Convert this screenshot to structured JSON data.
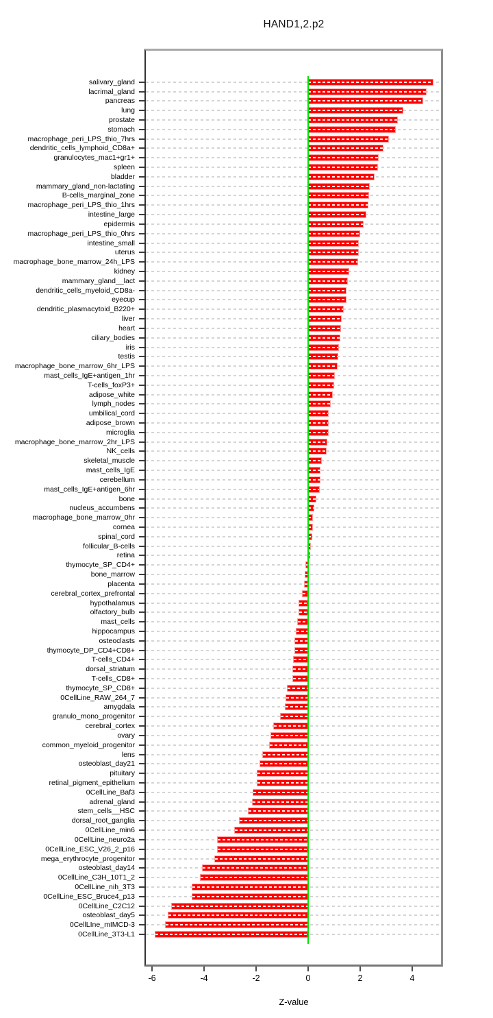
{
  "chart_data": {
    "type": "bar",
    "orientation": "horizontal",
    "title": "HAND1,2.p2",
    "xlabel": "Z-value",
    "xlim": [
      -6.26,
      5.18
    ],
    "xticks": [
      -6,
      -4,
      -2,
      0,
      2,
      4
    ],
    "grid": "dashed light-gray horizontal line per category",
    "zero_line": true,
    "legend": "none",
    "categories": [
      "salivary_gland",
      "lacrimal_gland",
      "pancreas",
      "lung",
      "prostate",
      "stomach",
      "macrophage_peri_LPS_thio_7hrs",
      "dendritic_cells_lymphoid_CD8a+",
      "granulocytes_mac1+gr1+",
      "spleen",
      "bladder",
      "mammary_gland_non-lactating",
      "B-cells_marginal_zone",
      "macrophage_peri_LPS_thio_1hrs",
      "intestine_large",
      "epidermis",
      "macrophage_peri_LPS_thio_0hrs",
      "intestine_small",
      "uterus",
      "macrophage_bone_marrow_24h_LPS",
      "kidney",
      "mammary_gland__lact",
      "dendritic_cells_myeloid_CD8a-",
      "eyecup",
      "dendritic_plasmacytoid_B220+",
      "liver",
      "heart",
      "ciliary_bodies",
      "iris",
      "testis",
      "macrophage_bone_marrow_6hr_LPS",
      "mast_cells_IgE+antigen_1hr",
      "T-cells_foxP3+",
      "adipose_white",
      "lymph_nodes",
      "umbilical_cord",
      "adipose_brown",
      "microglia",
      "macrophage_bone_marrow_2hr_LPS",
      "NK_cells",
      "skeletal_muscle",
      "mast_cells_IgE",
      "cerebellum",
      "mast_cells_IgE+antigen_6hr",
      "bone",
      "nucleus_accumbens",
      "macrophage_bone_marrow_0hr",
      "cornea",
      "spinal_cord",
      "follicular_B-cells",
      "retina",
      "thymocyte_SP_CD4+",
      "bone_marrow",
      "placenta",
      "cerebral_cortex_prefrontal",
      "hypothalamus",
      "olfactory_bulb",
      "mast_cells",
      "hippocampus",
      "osteoclasts",
      "thymocyte_DP_CD4+CD8+",
      "T-cells_CD4+",
      "dorsal_striatum",
      "T-cells_CD8+",
      "thymocyte_SP_CD8+",
      "0CellLine_RAW_264_7",
      "amygdala",
      "granulo_mono_progenitor",
      "cerebral_cortex",
      "ovary",
      "common_myeloid_progenitor",
      "lens",
      "osteoblast_day21",
      "pituitary",
      "retinal_pigment_epithelium",
      "0CellLine_Baf3",
      "adrenal_gland",
      "stem_cells__HSC",
      "dorsal_root_ganglia",
      "0CellLine_min6",
      "0CellLine_neuro2a",
      "0CellLine_ESC_V26_2_p16",
      "mega_erythrocyte_progenitor",
      "osteoblast_day14",
      "0CellLine_C3H_10T1_2",
      "0CellLine_nih_3T3",
      "0CellLine_ESC_Bruce4_p13",
      "0CellLine_C2C12",
      "osteoblast_day5",
      "0CellLIne_mIMCD-3",
      "0CellLine_3T3-L1"
    ],
    "values": [
      4.78,
      4.52,
      4.4,
      3.64,
      3.42,
      3.33,
      3.07,
      2.88,
      2.68,
      2.67,
      2.53,
      2.35,
      2.32,
      2.3,
      2.22,
      2.1,
      1.98,
      1.93,
      1.91,
      1.89,
      1.55,
      1.49,
      1.45,
      1.44,
      1.35,
      1.27,
      1.24,
      1.21,
      1.15,
      1.12,
      1.11,
      0.99,
      0.98,
      0.92,
      0.85,
      0.77,
      0.76,
      0.76,
      0.7,
      0.68,
      0.5,
      0.46,
      0.44,
      0.42,
      0.29,
      0.21,
      0.17,
      0.15,
      0.14,
      0.07,
      0.06,
      -0.08,
      -0.11,
      -0.12,
      -0.2,
      -0.34,
      -0.34,
      -0.39,
      -0.45,
      -0.5,
      -0.51,
      -0.54,
      -0.57,
      -0.59,
      -0.79,
      -0.84,
      -0.87,
      -1.06,
      -1.32,
      -1.42,
      -1.48,
      -1.74,
      -1.85,
      -1.95,
      -1.96,
      -2.11,
      -2.14,
      -2.29,
      -2.64,
      -2.81,
      -3.47,
      -3.47,
      -3.59,
      -4.04,
      -4.12,
      -4.45,
      -4.46,
      -5.24,
      -5.36,
      -5.48,
      -5.87
    ],
    "colors": {
      "bar": "#ff0000",
      "bar_edge": "#ff9c9c",
      "bar_stripe": "rgba(255,255,255,0.95)",
      "zero_line": "#00e400",
      "gridline": "#d4d4d4",
      "box_border": "#8f8f8f",
      "axis_text": "#000000",
      "background": "#ffffff"
    }
  }
}
